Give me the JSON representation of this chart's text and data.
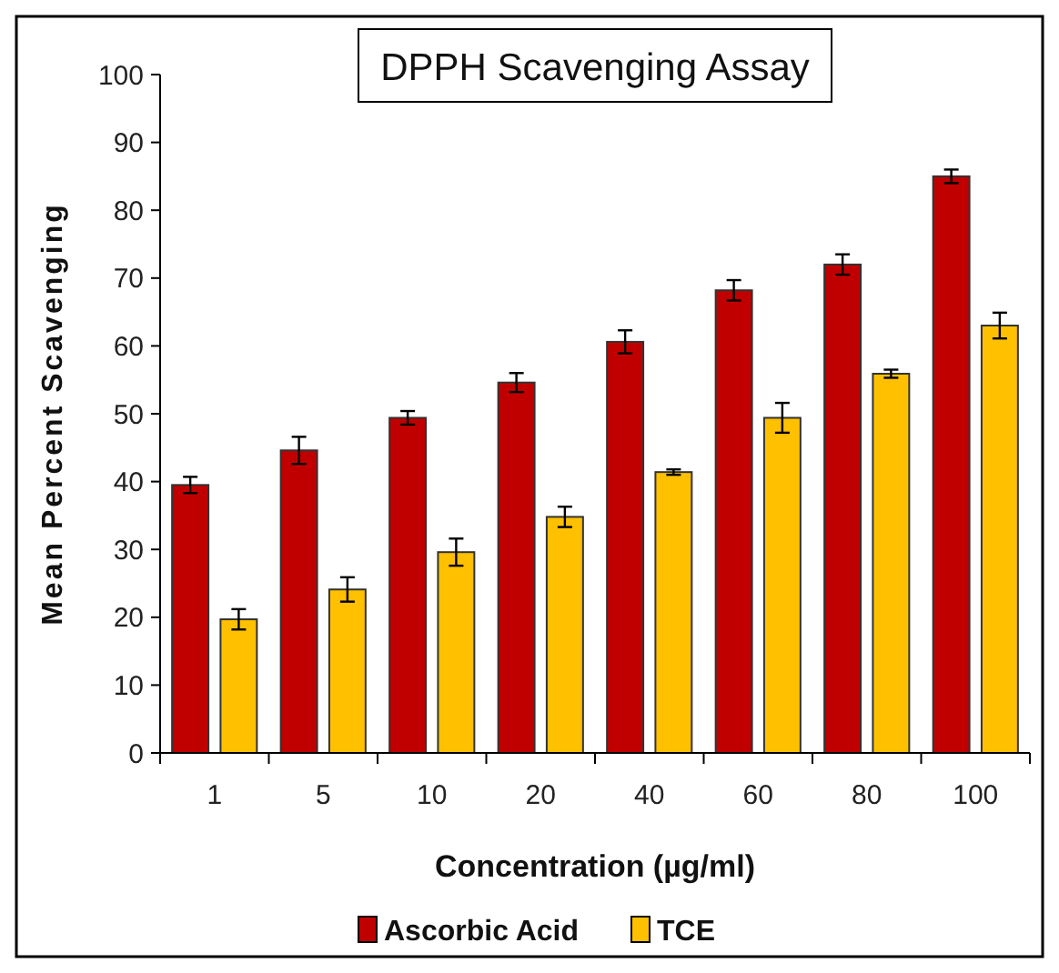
{
  "chart_data": {
    "type": "bar",
    "title": "DPPH Scavenging Assay",
    "xlabel": "Concentration (µg/ml)",
    "ylabel": "Mean Percent Scavenging",
    "categories": [
      "1",
      "5",
      "10",
      "20",
      "40",
      "60",
      "80",
      "100"
    ],
    "series": [
      {
        "name": "Ascorbic Acid",
        "color": "#c00000",
        "values": [
          39.5,
          44.6,
          49.4,
          54.6,
          60.6,
          68.2,
          72.0,
          85.0
        ],
        "errors": [
          1.2,
          2,
          1,
          1.4,
          1.7,
          1.5,
          1.5,
          1
        ]
      },
      {
        "name": "TCE",
        "color": "#ffc000",
        "values": [
          19.7,
          24.1,
          29.6,
          34.8,
          41.4,
          49.4,
          55.9,
          63.0
        ],
        "errors": [
          1.5,
          1.8,
          2,
          1.5,
          0.4,
          2.2,
          0.6,
          1.9
        ]
      }
    ],
    "ylim": [
      0,
      100
    ],
    "yticks": [
      0,
      10,
      20,
      30,
      40,
      50,
      60,
      70,
      80,
      90,
      100
    ],
    "grid": false,
    "legend": "bottom"
  }
}
